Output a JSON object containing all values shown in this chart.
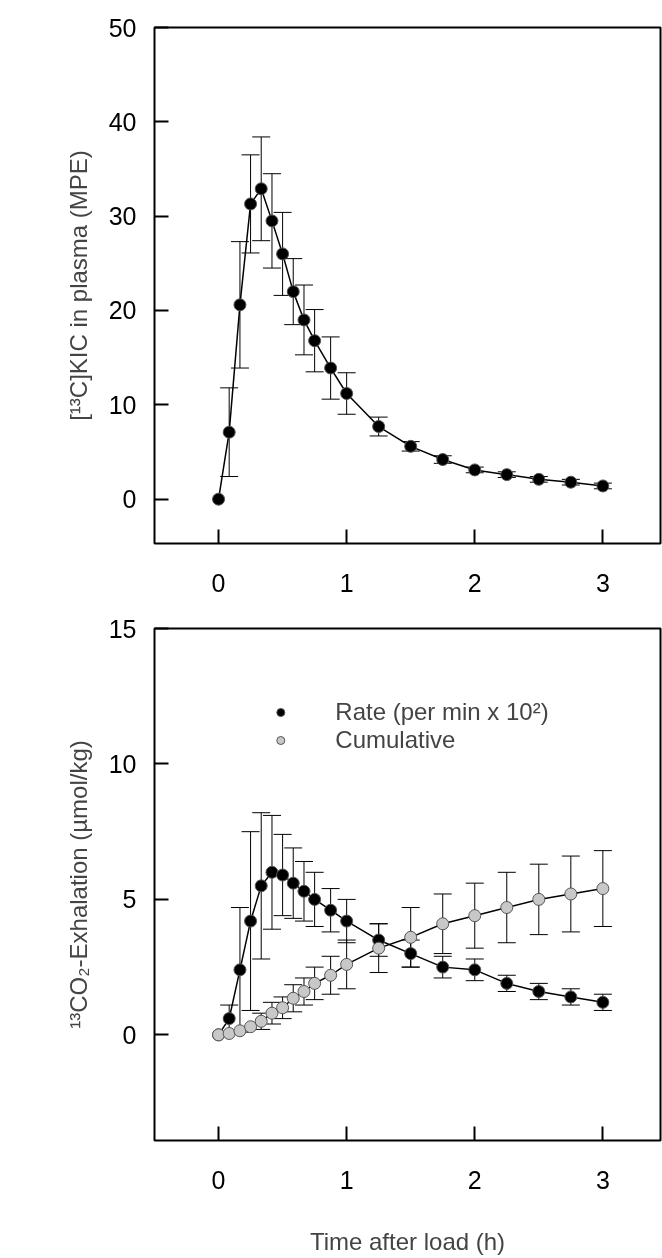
{
  "chart_data": [
    {
      "type": "line",
      "ylabel": "[¹³C]KIC in plasma (MPE)",
      "xlim": [
        -0.5,
        3.45
      ],
      "ylim": [
        -4.7,
        50
      ],
      "xticks": [
        0,
        1,
        2,
        3
      ],
      "yticks": [
        0,
        10,
        20,
        30,
        40,
        50
      ],
      "grid": false,
      "legend": false,
      "marker": "circle",
      "line_style": "solid",
      "series": [
        {
          "color": "#000000",
          "x": [
            0,
            0.083,
            0.167,
            0.25,
            0.333,
            0.417,
            0.5,
            0.583,
            0.667,
            0.75,
            0.875,
            1,
            1.25,
            1.5,
            1.75,
            2,
            2.25,
            2.5,
            2.75,
            3
          ],
          "values": [
            0,
            7.1,
            20.6,
            31.3,
            32.9,
            29.5,
            26,
            22,
            19,
            16.8,
            13.9,
            11.2,
            7.7,
            5.6,
            4.2,
            3.1,
            2.6,
            2.1,
            1.8,
            1.4
          ],
          "errors": [
            null,
            4.7,
            6.7,
            5.2,
            5.5,
            5,
            4.4,
            3.5,
            3.7,
            3.3,
            3.3,
            2.2,
            1,
            0.5,
            0.4,
            0.3,
            0.3,
            0.3,
            0.3,
            0.3
          ]
        }
      ]
    },
    {
      "type": "line",
      "xlabel": "Time after load (h)",
      "ylabel": "¹³CO₂-Exhalation (µmol/kg)",
      "xlim": [
        -0.5,
        3.45
      ],
      "ylim": [
        -3.9,
        15
      ],
      "xticks": [
        0,
        1,
        2,
        3
      ],
      "yticks": [
        0,
        5,
        10,
        15
      ],
      "grid": false,
      "legend": "top",
      "marker": "circle",
      "line_style": "solid",
      "series": [
        {
          "name": "Rate (per min x 10²)",
          "color": "#000000",
          "x": [
            0,
            0.083,
            0.167,
            0.25,
            0.333,
            0.417,
            0.5,
            0.583,
            0.667,
            0.75,
            0.875,
            1,
            1.25,
            1.5,
            1.75,
            2,
            2.25,
            2.5,
            2.75,
            3
          ],
          "values": [
            0,
            0.6,
            2.4,
            4.2,
            5.5,
            6,
            5.9,
            5.6,
            5.3,
            5,
            4.6,
            4.2,
            3.5,
            3,
            2.5,
            2.4,
            1.9,
            1.6,
            1.4,
            1.2
          ],
          "errors": [
            null,
            0.5,
            2.3,
            3.3,
            2.7,
            2.1,
            1.5,
            1.3,
            1.1,
            1,
            0.8,
            0.8,
            0.6,
            0.5,
            0.4,
            0.4,
            0.3,
            0.3,
            0.3,
            0.3
          ]
        },
        {
          "name": "Cumulative",
          "color": "#c8c8c8",
          "x": [
            0,
            0.083,
            0.167,
            0.25,
            0.333,
            0.417,
            0.5,
            0.583,
            0.667,
            0.75,
            0.875,
            1,
            1.25,
            1.5,
            1.75,
            2,
            2.25,
            2.5,
            2.75,
            3
          ],
          "values": [
            0,
            0.05,
            0.15,
            0.3,
            0.5,
            0.8,
            1,
            1.35,
            1.6,
            1.9,
            2.2,
            2.6,
            3.2,
            3.6,
            4.1,
            4.4,
            4.7,
            5,
            5.2,
            5.4
          ],
          "errors": [
            null,
            null,
            null,
            null,
            0.3,
            0.4,
            0.4,
            0.5,
            0.5,
            0.6,
            0.7,
            0.9,
            0.9,
            1.1,
            1.1,
            1.2,
            1.3,
            1.3,
            1.4,
            1.4
          ]
        }
      ]
    }
  ]
}
